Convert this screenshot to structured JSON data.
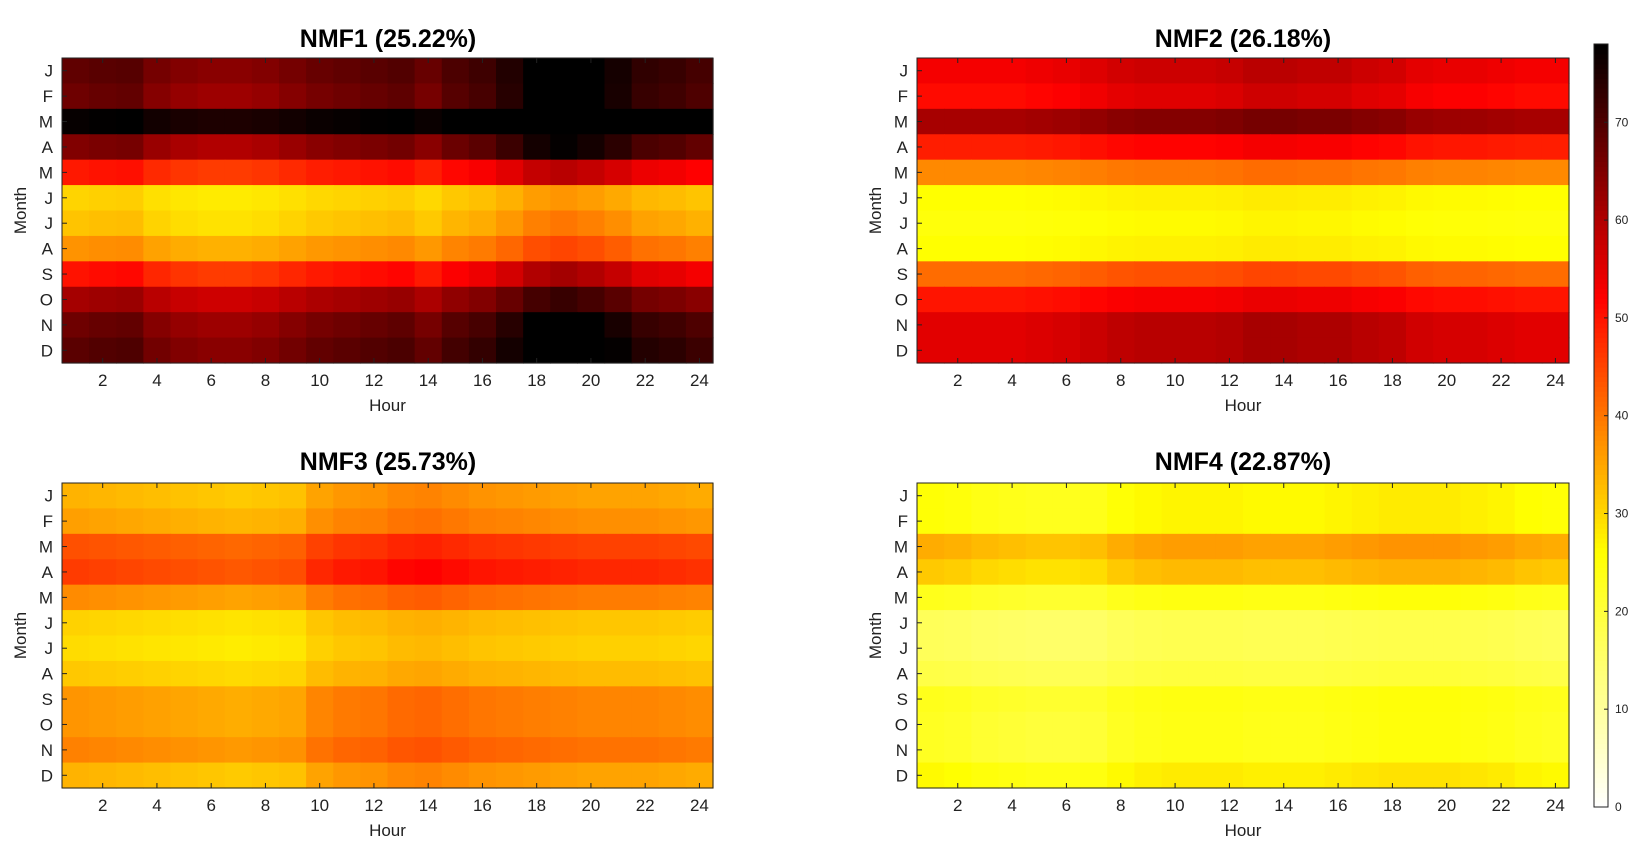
{
  "chart_data": {
    "type": "heatmap",
    "colormap": "hot (reversed)",
    "colorbar": {
      "min": 0,
      "max": 78,
      "ticks": [
        0,
        10,
        20,
        30,
        40,
        50,
        60,
        70
      ]
    },
    "panels": [
      {
        "title": "NMF1 (25.22%)",
        "xlabel": "Hour",
        "ylabel": "Month",
        "x_ticks": [
          2,
          4,
          6,
          8,
          10,
          12,
          14,
          16,
          18,
          20,
          22,
          24
        ],
        "months": [
          "J",
          "F",
          "M",
          "A",
          "M",
          "J",
          "J",
          "A",
          "S",
          "O",
          "N",
          "D"
        ],
        "base": [
          64,
          62,
          75,
          60,
          46,
          28,
          29,
          34,
          46,
          57,
          62,
          64
        ],
        "day_shape": [
          0.6,
          0.7,
          0.75,
          0.3,
          0.1,
          0.0,
          0.0,
          0.1,
          0.3,
          0.5,
          0.6,
          0.7,
          0.8,
          0.5,
          0.9,
          1.1,
          1.5,
          2.0,
          2.2,
          2.0,
          1.7,
          1.3,
          1.2,
          1.0
        ],
        "amp": [
          7,
          8,
          4,
          8,
          6,
          4,
          5,
          5,
          7,
          7,
          8,
          8
        ]
      },
      {
        "title": "NMF2 (26.18%)",
        "xlabel": "Hour",
        "ylabel": "Month",
        "x_ticks": [
          2,
          4,
          6,
          8,
          10,
          12,
          14,
          16,
          18,
          20,
          22,
          24
        ],
        "months": [
          "J",
          "F",
          "M",
          "A",
          "M",
          "J",
          "J",
          "A",
          "S",
          "O",
          "N",
          "D"
        ],
        "base": [
          53,
          51,
          61,
          49,
          38,
          26,
          25,
          26,
          41,
          50,
          55,
          55
        ],
        "day_shape": [
          0.0,
          0.0,
          0.0,
          0.0,
          0.1,
          0.2,
          0.4,
          0.6,
          0.7,
          0.7,
          0.7,
          0.8,
          1.0,
          1.0,
          0.9,
          0.9,
          0.7,
          0.6,
          0.3,
          0.2,
          0.2,
          0.1,
          0.0,
          0.0
        ],
        "amp": [
          6,
          6,
          5,
          4,
          3,
          2,
          2,
          2,
          4,
          4,
          6,
          6
        ]
      },
      {
        "title": "NMF3 (25.73%)",
        "xlabel": "Hour",
        "ylabel": "Month",
        "x_ticks": [
          2,
          4,
          6,
          8,
          10,
          12,
          14,
          16,
          18,
          20,
          22,
          24
        ],
        "months": [
          "J",
          "F",
          "M",
          "A",
          "M",
          "J",
          "J",
          "A",
          "S",
          "O",
          "N",
          "D"
        ],
        "base": [
          33,
          35,
          43,
          45,
          37,
          30,
          29,
          31,
          36,
          36,
          38,
          33
        ],
        "day_shape": [
          0.2,
          0.1,
          0.0,
          -0.1,
          -0.2,
          -0.3,
          -0.4,
          -0.3,
          -0.2,
          0.6,
          0.9,
          1.0,
          1.3,
          1.4,
          1.2,
          1.0,
          0.9,
          0.8,
          0.7,
          0.6,
          0.6,
          0.6,
          0.5,
          0.4
        ],
        "amp": [
          4,
          4,
          4,
          5,
          4,
          3,
          3,
          3,
          4,
          4,
          4,
          4
        ]
      },
      {
        "title": "NMF4 (22.87%)",
        "xlabel": "Hour",
        "ylabel": "Month",
        "x_ticks": [
          2,
          4,
          6,
          8,
          10,
          12,
          14,
          16,
          18,
          20,
          22,
          24
        ],
        "months": [
          "J",
          "F",
          "M",
          "A",
          "M",
          "J",
          "J",
          "A",
          "S",
          "O",
          "N",
          "D"
        ],
        "base": [
          24,
          24,
          33,
          30,
          22,
          16,
          16,
          18,
          22,
          21,
          21,
          25
        ],
        "day_shape": [
          0.3,
          0.2,
          0.0,
          -0.1,
          -0.2,
          -0.2,
          -0.1,
          0.3,
          0.5,
          0.6,
          0.6,
          0.6,
          0.5,
          0.5,
          0.5,
          0.6,
          0.7,
          0.8,
          0.8,
          0.8,
          0.7,
          0.6,
          0.4,
          0.3
        ],
        "amp": [
          5,
          5,
          5,
          5,
          4,
          3,
          3,
          3,
          4,
          5,
          5,
          5
        ]
      }
    ]
  }
}
